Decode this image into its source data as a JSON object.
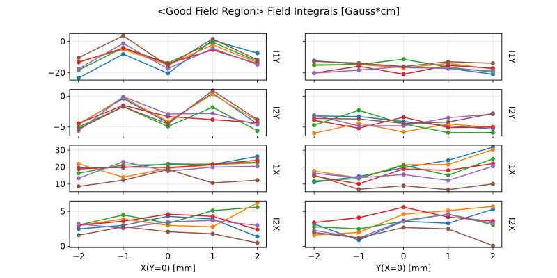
{
  "figure": {
    "title": "<Good Field Region> Field Integrals [Gauss*cm]"
  },
  "series_colors": {
    "blue": "#1f77b4",
    "orange": "#ff7f0e",
    "green": "#2ca02c",
    "red": "#d62728",
    "purple": "#9467bd",
    "brown": "#8c564b"
  },
  "chart_data": [
    {
      "type": "line",
      "panel": "row1-left",
      "xlabel": "",
      "ylabel": "I1Y",
      "x": [
        -2,
        -1,
        0,
        1,
        2
      ],
      "xlim": [
        -2.2,
        2.2
      ],
      "ylim": [
        -24.6,
        5.0
      ],
      "xticks": [
        -2,
        -1,
        0,
        1,
        2
      ],
      "yticks": [
        0,
        -20
      ],
      "ytick_labels": [
        "0",
        "−20"
      ],
      "grid": true,
      "series": [
        {
          "name": "blue",
          "values": [
            -23.3,
            -8.1,
            -20.3,
            0.7,
            -7.5
          ]
        },
        {
          "name": "orange",
          "values": [
            -13.0,
            -5.1,
            -15.0,
            -2.2,
            -13.5
          ]
        },
        {
          "name": "green",
          "values": [
            -18.3,
            -4.0,
            -13.8,
            -0.5,
            -12.7
          ]
        },
        {
          "name": "red",
          "values": [
            -13.3,
            -4.3,
            -14.2,
            -5.4,
            -14.2
          ]
        },
        {
          "name": "purple",
          "values": [
            -17.4,
            -1.3,
            -17.4,
            -4.5,
            -14.8
          ]
        },
        {
          "name": "brown",
          "values": [
            -10.4,
            3.6,
            -15.4,
            1.6,
            -11.8
          ]
        }
      ]
    },
    {
      "type": "line",
      "panel": "row1-right",
      "xlabel": "",
      "ylabel": "I1Y",
      "x": [
        -2,
        -1,
        0,
        1,
        2
      ],
      "xlim": [
        -2.2,
        2.2
      ],
      "ylim": [
        -24.6,
        5.0
      ],
      "xticks": [
        -2,
        -1,
        0,
        1,
        2
      ],
      "yticks": [
        0,
        -20
      ],
      "grid": true,
      "series": [
        {
          "name": "blue",
          "values": [
            -12.3,
            -14.5,
            -16.7,
            -17.1,
            -20.9
          ]
        },
        {
          "name": "orange",
          "values": [
            -15.3,
            -14.7,
            -16.8,
            -14.0,
            -17.6
          ]
        },
        {
          "name": "green",
          "values": [
            -14.9,
            -14.7,
            -11.3,
            -16.4,
            -19.5
          ]
        },
        {
          "name": "red",
          "values": [
            -20.2,
            -15.8,
            -20.9,
            -15.3,
            -17.1
          ]
        },
        {
          "name": "purple",
          "values": [
            -20.2,
            -18.3,
            -16.0,
            -17.4,
            -18.6
          ]
        },
        {
          "name": "brown",
          "values": [
            -12.7,
            -13.8,
            -16.0,
            -12.9,
            -13.9
          ]
        }
      ]
    },
    {
      "type": "line",
      "panel": "row2-left",
      "xlabel": "",
      "ylabel": "I2Y",
      "x": [
        -2,
        -1,
        0,
        1,
        2
      ],
      "xlim": [
        -2.2,
        2.2
      ],
      "ylim": [
        -6.43,
        1.08
      ],
      "xticks": [
        -2,
        -1,
        0,
        1,
        2
      ],
      "yticks": [
        0,
        -5
      ],
      "ytick_labels": [
        "0",
        "−5"
      ],
      "grid": true,
      "series": [
        {
          "name": "blue",
          "values": [
            -4.5,
            -0.4,
            -4.3,
            0.5,
            -4.5
          ]
        },
        {
          "name": "orange",
          "values": [
            -4.6,
            -0.2,
            -4.1,
            0.3,
            -4.0
          ]
        },
        {
          "name": "green",
          "values": [
            -5.0,
            -1.7,
            -4.9,
            -1.8,
            -5.6
          ]
        },
        {
          "name": "red",
          "values": [
            -4.4,
            -1.5,
            -3.3,
            -3.8,
            -4.3
          ]
        },
        {
          "name": "purple",
          "values": [
            -5.6,
            -0.1,
            -2.9,
            -2.8,
            -4.6
          ]
        },
        {
          "name": "brown",
          "values": [
            -5.3,
            -1.7,
            -4.5,
            0.9,
            -3.8
          ]
        }
      ]
    },
    {
      "type": "line",
      "panel": "row2-right",
      "xlabel": "",
      "ylabel": "I2Y",
      "x": [
        -2,
        -1,
        0,
        1,
        2
      ],
      "xlim": [
        -2.2,
        2.2
      ],
      "ylim": [
        -6.43,
        1.08
      ],
      "xticks": [
        -2,
        -1,
        0,
        1,
        2
      ],
      "yticks": [
        0,
        -5
      ],
      "grid": true,
      "series": [
        {
          "name": "blue",
          "values": [
            -3.2,
            -3.3,
            -4.1,
            -4.8,
            -5.3
          ]
        },
        {
          "name": "orange",
          "values": [
            -6.0,
            -4.4,
            -5.8,
            -4.5,
            -5.1
          ]
        },
        {
          "name": "green",
          "values": [
            -4.7,
            -2.3,
            -4.5,
            -5.9,
            -5.9
          ]
        },
        {
          "name": "red",
          "values": [
            -3.9,
            -5.2,
            -3.4,
            -5.1,
            -5.0
          ]
        },
        {
          "name": "purple",
          "values": [
            -3.1,
            -4.8,
            -4.8,
            -3.5,
            -2.9
          ]
        },
        {
          "name": "brown",
          "values": [
            -3.6,
            -3.7,
            -4.4,
            -4.2,
            -2.8
          ]
        }
      ]
    },
    {
      "type": "line",
      "panel": "row3-left",
      "xlabel": "",
      "ylabel": "I1X",
      "x": [
        -2,
        -1,
        0,
        1,
        2
      ],
      "xlim": [
        -2.2,
        2.2
      ],
      "ylim": [
        5.5,
        32.9
      ],
      "xticks": [
        -2,
        -1,
        0,
        1,
        2
      ],
      "yticks": [
        10,
        20,
        30
      ],
      "ytick_labels": [
        "10",
        "20",
        "30"
      ],
      "grid": true,
      "series": [
        {
          "name": "blue",
          "values": [
            19.6,
            19.7,
            21.9,
            21.6,
            26.3
          ]
        },
        {
          "name": "orange",
          "values": [
            21.9,
            14.1,
            19.2,
            21.3,
            22.5
          ]
        },
        {
          "name": "green",
          "values": [
            16.4,
            21.2,
            21.4,
            21.8,
            22.9
          ]
        },
        {
          "name": "red",
          "values": [
            18.9,
            20.1,
            19.7,
            21.5,
            24.1
          ]
        },
        {
          "name": "purple",
          "values": [
            13.5,
            23.1,
            17.6,
            20.0,
            20.5
          ]
        },
        {
          "name": "brown",
          "values": [
            8.6,
            12.3,
            18.6,
            10.7,
            12.3
          ]
        }
      ]
    },
    {
      "type": "line",
      "panel": "row3-right",
      "xlabel": "",
      "ylabel": "I1X",
      "x": [
        -2,
        -1,
        0,
        1,
        2
      ],
      "xlim": [
        -2.2,
        2.2
      ],
      "ylim": [
        5.5,
        32.9
      ],
      "xticks": [
        -2,
        -1,
        0,
        1,
        2
      ],
      "yticks": [
        10,
        20,
        30
      ],
      "grid": true,
      "series": [
        {
          "name": "blue",
          "values": [
            11.1,
            14.5,
            19.6,
            24.0,
            31.8
          ]
        },
        {
          "name": "orange",
          "values": [
            17.7,
            13.6,
            21.4,
            21.5,
            30.4
          ]
        },
        {
          "name": "green",
          "values": [
            11.8,
            13.3,
            21.0,
            15.2,
            24.9
          ]
        },
        {
          "name": "red",
          "values": [
            14.7,
            10.1,
            18.9,
            18.1,
            22.1
          ]
        },
        {
          "name": "purple",
          "values": [
            16.4,
            13.7,
            15.6,
            12.2,
            20.5
          ]
        },
        {
          "name": "brown",
          "values": [
            15.3,
            6.9,
            9.0,
            6.7,
            10.1
          ]
        }
      ]
    },
    {
      "type": "line",
      "panel": "row4-left",
      "xlabel": "X(Y=0) [mm]",
      "ylabel": "I2X",
      "x": [
        -2,
        -1,
        0,
        1,
        2
      ],
      "xlim": [
        -2.2,
        2.2
      ],
      "ylim": [
        -0.16,
        6.48
      ],
      "xticks": [
        -2,
        -1,
        0,
        1,
        2
      ],
      "xtick_labels": [
        "−2",
        "−1",
        "0",
        "1",
        "2"
      ],
      "yticks": [
        0,
        5
      ],
      "ytick_labels": [
        "0",
        "5"
      ],
      "grid": true,
      "series": [
        {
          "name": "blue",
          "values": [
            2.5,
            3.0,
            4.3,
            3.9,
            1.4
          ]
        },
        {
          "name": "orange",
          "values": [
            3.0,
            3.9,
            3.0,
            2.8,
            6.2
          ]
        },
        {
          "name": "green",
          "values": [
            3.05,
            4.5,
            3.3,
            5.1,
            5.6
          ]
        },
        {
          "name": "red",
          "values": [
            3.0,
            3.6,
            4.6,
            4.3,
            2.4
          ]
        },
        {
          "name": "purple",
          "values": [
            3.2,
            2.6,
            3.5,
            3.7,
            3.0
          ]
        },
        {
          "name": "brown",
          "values": [
            1.6,
            2.8,
            2.1,
            1.8,
            0.5
          ]
        }
      ]
    },
    {
      "type": "line",
      "panel": "row4-right",
      "xlabel": "Y(X=0) [mm]",
      "ylabel": "I2X",
      "x": [
        -2,
        -1,
        0,
        1,
        2
      ],
      "xlim": [
        -2.2,
        2.2
      ],
      "ylim": [
        -0.16,
        6.48
      ],
      "xticks": [
        -2,
        -1,
        0,
        1,
        2
      ],
      "xtick_labels": [
        "−2",
        "−1",
        "0",
        "1",
        "2"
      ],
      "yticks": [
        0,
        5
      ],
      "grid": true,
      "series": [
        {
          "name": "blue",
          "values": [
            3.2,
            0.9,
            3.6,
            3.3,
            5.3
          ]
        },
        {
          "name": "orange",
          "values": [
            1.6,
            2.0,
            4.6,
            5.1,
            5.7
          ]
        },
        {
          "name": "green",
          "values": [
            2.8,
            2.5,
            3.6,
            4.6,
            3.1
          ]
        },
        {
          "name": "red",
          "values": [
            3.4,
            4.1,
            5.6,
            4.2,
            3.6
          ]
        },
        {
          "name": "purple",
          "values": [
            2.3,
            1.2,
            3.7,
            4.6,
            3.3
          ]
        },
        {
          "name": "brown",
          "values": [
            2.0,
            1.2,
            2.7,
            2.5,
            0.1
          ]
        }
      ]
    }
  ]
}
